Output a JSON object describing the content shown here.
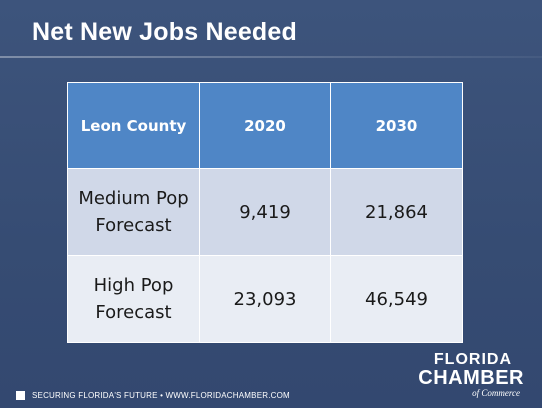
{
  "slide": {
    "title": "Net New Jobs Needed"
  },
  "table": {
    "headers": [
      "Leon County",
      "2020",
      "2030"
    ],
    "rows": [
      {
        "label": "Medium Pop Forecast",
        "values": [
          "9,419",
          "21,864"
        ]
      },
      {
        "label": "High Pop Forecast",
        "values": [
          "23,093",
          "46,549"
        ]
      }
    ]
  },
  "footer": {
    "text": "SECURING FLORIDA'S FUTURE • WWW.FLORIDACHAMBER.COM"
  },
  "logo": {
    "line1": "FLORIDA",
    "line2": "CHAMBER",
    "line3": "of Commerce"
  },
  "colors": {
    "background": "#3a5077",
    "header_fill": "#4f86c6",
    "row1_fill": "#d0d8e8",
    "row2_fill": "#e9edf4"
  }
}
